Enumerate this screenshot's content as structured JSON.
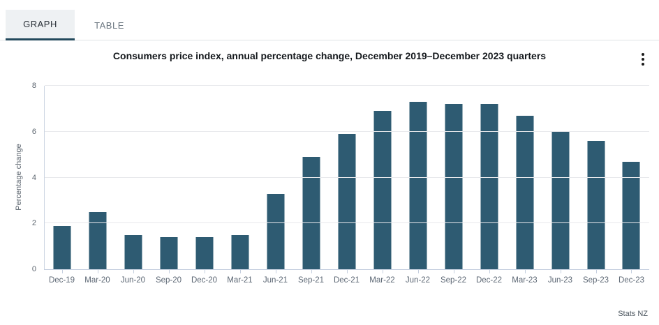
{
  "tabs": {
    "graph_label": "GRAPH",
    "table_label": "TABLE",
    "active": "GRAPH"
  },
  "header": {
    "title": "Consumers price index, annual percentage change, December 2019–December 2023 quarters",
    "menu_icon": "kebab-menu-icon"
  },
  "footer": {
    "source": "Stats NZ"
  },
  "colors": {
    "bar": "#2e5b72",
    "tab_underline": "#23495c",
    "tab_active_bg": "#eef1f3",
    "gridline": "#e8e9ec",
    "axis_line": "#c5cfdf"
  },
  "chart_data": {
    "type": "bar",
    "title": "Consumers price index, annual percentage change, December 2019–December 2023 quarters",
    "categories": [
      "Dec-19",
      "Mar-20",
      "Jun-20",
      "Sep-20",
      "Dec-20",
      "Mar-21",
      "Jun-21",
      "Sep-21",
      "Dec-21",
      "Mar-22",
      "Jun-22",
      "Sep-22",
      "Dec-22",
      "Mar-23",
      "Jun-23",
      "Sep-23",
      "Dec-23"
    ],
    "values": [
      1.9,
      2.5,
      1.5,
      1.4,
      1.4,
      1.5,
      3.3,
      4.9,
      5.9,
      6.9,
      7.3,
      7.2,
      7.2,
      6.7,
      6.0,
      5.6,
      4.7
    ],
    "xlabel": "",
    "ylabel": "Percentage change",
    "ylim": [
      0,
      8
    ],
    "yticks": [
      0,
      2,
      4,
      6,
      8
    ],
    "grid": true,
    "legend": false,
    "source": "Stats NZ"
  }
}
